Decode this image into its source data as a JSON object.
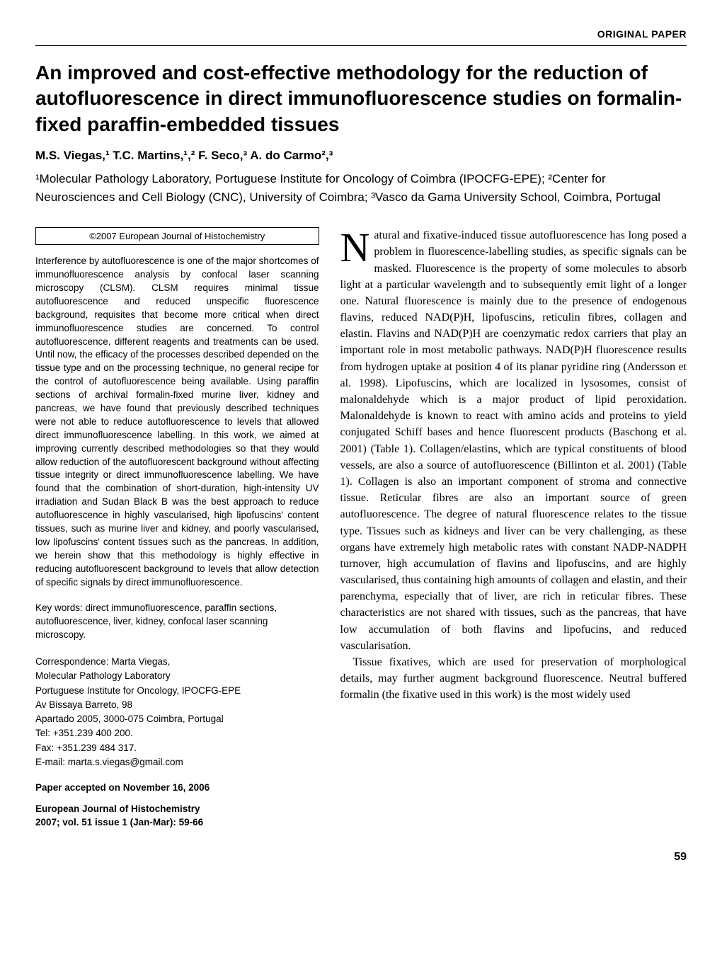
{
  "header": {
    "label": "ORIGINAL PAPER"
  },
  "title": "An improved and cost-effective methodology for the reduction of autofluorescence in direct immunofluorescence studies on formalin-fixed paraffin-embedded tissues",
  "authors": "M.S. Viegas,¹ T.C. Martins,¹,² F. Seco,³ A. do Carmo²,³",
  "affiliations": "¹Molecular Pathology Laboratory, Portuguese Institute for Oncology of Coimbra (IPOCFG-EPE); ²Center for Neurosciences and Cell Biology (CNC), University of Coimbra; ³Vasco da Gama University School, Coimbra, Portugal",
  "copyright": "©2007 European Journal of Histochemistry",
  "abstract": "Interference by autofluorescence is one of the major shortcomes of immunofluorescence analysis by confocal laser scanning microscopy (CLSM). CLSM requires minimal tissue autofluorescence and reduced unspecific fluorescence background, requisites that become more critical when direct immunofluorescence studies are concerned. To control autofluorescence, different reagents and treatments can be used. Until now, the efficacy of the processes described depended on the tissue type and on the processing technique, no general recipe for the control of autofluorescence being available. Using paraffin sections of archival formalin-fixed murine liver, kidney and pancreas, we have found that previously described techniques were not able to reduce autofluorescence to levels that allowed direct immunofluorescence labelling. In this work, we aimed at improving currently described methodologies so that they would allow reduction of the autofluorescent background without affecting tissue integrity or direct immunofluorescence labelling. We have found that the combination of short-duration, high-intensity UV irradiation and Sudan Black B was the best approach to reduce autofluorescence in highly vascularised, high lipofuscins' content tissues, such as murine liver and kidney, and poorly vascularised, low lipofuscins' content tissues such as the pancreas. In addition, we herein show that this methodology is highly effective in reducing autofluorescent background to levels that allow detection of specific signals by direct immunofluorescence.",
  "keywords": "Key words: direct immunofluorescence, paraffin sections, autofluorescence, liver, kidney, confocal laser scanning microscopy.",
  "correspondence": {
    "label": "Correspondence: Marta Viegas,",
    "line1": "Molecular Pathology Laboratory",
    "line2": "Portuguese Institute for Oncology, IPOCFG-EPE",
    "line3": "Av Bissaya Barreto, 98",
    "line4": "Apartado 2005, 3000-075 Coimbra, Portugal",
    "line5": "Tel: +351.239 400 200.",
    "line6": "Fax: +351.239 484 317.",
    "line7": "E-mail: marta.s.viegas@gmail.com"
  },
  "accepted": "Paper accepted on November 16, 2006",
  "journal": {
    "name": "European Journal of Histochemistry",
    "citation": "2007; vol. 51 issue 1 (Jan-Mar): 59-66"
  },
  "body": {
    "dropcap": "N",
    "para1": "atural and fixative-induced tissue autofluorescence has long posed a problem in fluorescence-labelling studies, as specific signals can be masked. Fluorescence is the property of some molecules to absorb light at a particular wavelength and to subsequently emit light of a longer one. Natural fluorescence is mainly due to the presence of endogenous flavins, reduced NAD(P)H, lipofuscins, reticulin fibres, collagen and elastin. Flavins and NAD(P)H are coenzymatic redox carriers that play an important role in most metabolic pathways. NAD(P)H fluorescence results from hydrogen uptake at position 4 of its planar pyridine ring (Andersson et al. 1998). Lipofuscins, which are localized in lysosomes, consist of malonaldehyde which is a major product of lipid peroxidation. Malonaldehyde is known to react with amino acids and proteins to yield conjugated Schiff bases and hence fluorescent products (Baschong et al. 2001) (Table 1). Collagen/elastins, which are typical constituents of blood vessels, are also a source of autofluorescence (Billinton et al. 2001) (Table 1). Collagen is also an important component of stroma and connective tissue. Reticular fibres are also an important source of green autofluorescence. The degree of natural fluorescence relates to the tissue type. Tissues such as kidneys and liver can be very challenging, as these organs have extremely high metabolic rates with constant NADP-NADPH turnover, high accumulation of flavins and lipofuscins, and are highly vascularised, thus containing high amounts of collagen and elastin, and their parenchyma, especially that of liver, are rich in reticular fibres. These characteristics are not shared with tissues, such as the pancreas, that have low accumulation of both flavins and lipofucins, and reduced vascularisation.",
    "para2": "Tissue fixatives, which are used for preservation of morphological details, may further augment background fluorescence. Neutral buffered formalin (the fixative used in this work) is the most widely used"
  },
  "page_number": "59"
}
